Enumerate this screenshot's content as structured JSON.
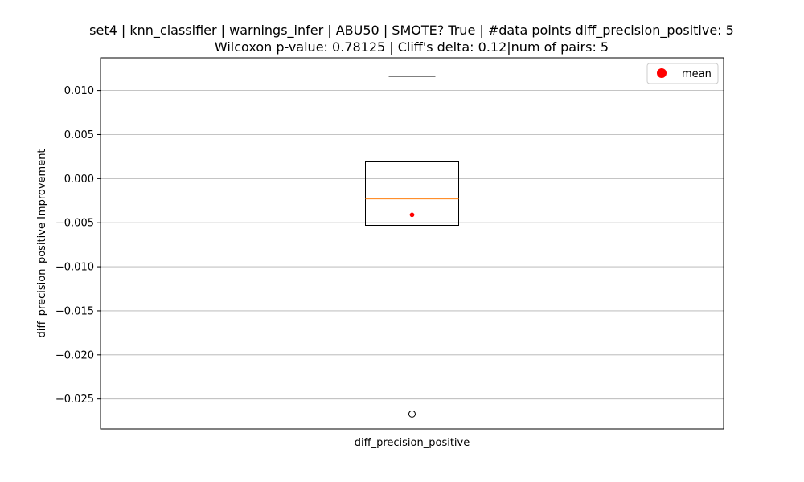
{
  "chart_data": {
    "type": "box",
    "title_line1": "set4 | knn_classifier | warnings_infer | ABU50 | SMOTE? True | #data points diff_precision_positive: 5",
    "title_line2": "Wilcoxon p-value: 0.78125 | Cliff's delta: 0.12|num of pairs: 5",
    "xlabel": "",
    "ylabel": "diff_precision_positive Improvement",
    "categories": [
      "diff_precision_positive"
    ],
    "ylim": [
      -0.0284,
      0.0137
    ],
    "yticks": [
      0.01,
      0.005,
      0.0,
      -0.005,
      -0.01,
      -0.015,
      -0.02,
      -0.025
    ],
    "ytick_labels": [
      "0.010",
      "0.005",
      "0.000",
      "−0.005",
      "−0.010",
      "−0.015",
      "−0.020",
      "−0.025"
    ],
    "grid": true,
    "box": {
      "whisker_low": -0.0053,
      "q1": -0.0053,
      "median": -0.0023,
      "q3": 0.0019,
      "whisker_high": 0.0116,
      "mean": -0.0041,
      "outliers": [
        -0.0267
      ]
    },
    "legend": {
      "placement": "top-right",
      "entries": [
        "mean"
      ]
    },
    "colors": {
      "median": "#ff7f0e",
      "mean": "#ff0000",
      "grid": "#b0b0b0",
      "box": "#000000"
    }
  }
}
